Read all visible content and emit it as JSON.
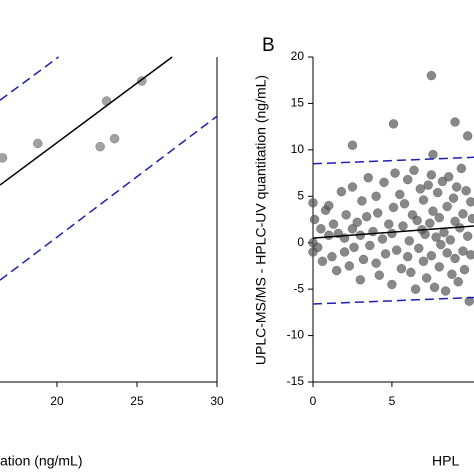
{
  "chart_data": [
    {
      "type": "scatter",
      "x_label": "ation (ng/mL)",
      "xlim": [
        16.44,
        30
      ],
      "ylim": [
        6.7,
        27
      ],
      "xticks": [
        20,
        25,
        30
      ],
      "series": [
        {
          "kind": "points",
          "color": "#7a7a7a",
          "x": [
            23.1,
            25.3,
            23.6,
            22.7,
            18.8,
            16.6
          ],
          "values": [
            24.25,
            25.5,
            21.9,
            21.4,
            21.6,
            20.7
          ]
        },
        {
          "kind": "solid",
          "color": "#000000",
          "x": [
            16.44,
            27.2
          ],
          "values": [
            19.0,
            27.0
          ]
        },
        {
          "kind": "dashed",
          "color": "#1f1fb4",
          "x": [
            16.44,
            20.1
          ],
          "values": [
            24.3,
            27.0
          ]
        },
        {
          "kind": "dashed",
          "color": "#1f1fb4",
          "x": [
            16.44,
            30
          ],
          "values": [
            13.06,
            23.3
          ]
        }
      ]
    },
    {
      "type": "scatter",
      "panel_label": "B",
      "x_label": "HPL",
      "y_label": "UPLC-MS/MS - HPLC-UV quantitation (ng/mL)",
      "xlim": [
        0,
        10.2
      ],
      "ylim": [
        -15,
        20
      ],
      "xticks": [
        0,
        5
      ],
      "yticks": [
        -15,
        -10,
        -5,
        0,
        5,
        10,
        15,
        20
      ],
      "series": [
        {
          "kind": "points",
          "color": "#555555",
          "x": [
            0,
            0,
            0,
            0.1,
            0.3,
            0.5,
            0.6,
            0.8,
            1,
            1,
            1.2,
            1.3,
            1.5,
            1.6,
            1.8,
            2,
            2,
            2.1,
            2.3,
            2.5,
            2.5,
            2.6,
            2.8,
            3,
            3,
            3.1,
            3.2,
            3.4,
            3.5,
            3.6,
            3.8,
            4,
            4,
            4.1,
            4.2,
            4.4,
            4.5,
            4.6,
            4.8,
            5,
            5,
            5.1,
            5.2,
            5.3,
            5.5,
            5.6,
            5.7,
            5.8,
            6,
            6,
            6.1,
            6.2,
            6.3,
            6.4,
            6.5,
            6.6,
            6.7,
            6.8,
            6.9,
            7,
            7,
            7.1,
            7.2,
            7.3,
            7.4,
            7.5,
            7.5,
            7.6,
            7.7,
            7.8,
            7.9,
            8,
            8,
            8.1,
            8.2,
            8.3,
            8.4,
            8.5,
            8.5,
            8.6,
            8.7,
            8.8,
            8.9,
            9,
            9,
            9.1,
            9.2,
            9.3,
            9.4,
            9.5,
            9.5,
            9.6,
            9.7,
            9.8,
            9.9,
            10,
            10,
            10.1,
            7.5,
            5.1,
            9,
            2.5,
            9.8,
            7.6
          ],
          "values": [
            0,
            4.3,
            -1,
            2.5,
            -0.5,
            1.5,
            -2,
            3.5,
            4,
            0.8,
            -1.5,
            2,
            -3,
            1,
            5.5,
            0.5,
            -1,
            3,
            -2.5,
            6,
            1.5,
            -0.5,
            2.2,
            -4,
            0.8,
            4.5,
            -1.8,
            2.8,
            7,
            -0.3,
            1.2,
            -2.2,
            5,
            3.2,
            -3.5,
            0.4,
            6.5,
            -1.2,
            2,
            1,
            -4.5,
            3.8,
            7.5,
            -0.8,
            5.2,
            -2.8,
            1.8,
            4.2,
            -1.5,
            6.8,
            0.2,
            -3.2,
            3,
            7.8,
            -5,
            2.4,
            -0.6,
            5.8,
            1.4,
            -2,
            4.6,
            0.9,
            -3.8,
            6.2,
            2.1,
            -1.4,
            7.3,
            3.4,
            -4.8,
            0.6,
            5.4,
            -2.6,
            2.7,
            -0.2,
            6.6,
            1.1,
            -5.2,
            3.9,
            -1.1,
            7.1,
            0.3,
            -3.4,
            4.8,
            2.3,
            -1.7,
            6,
            -4.2,
            1.6,
            8,
            -0.9,
            3.1,
            -2.9,
            5.6,
            0.7,
            -6.3,
            4.4,
            -1.3,
            2.6,
            18,
            12.8,
            13,
            10.5,
            11.5,
            9.5
          ]
        },
        {
          "kind": "solid",
          "color": "#000000",
          "x": [
            0,
            10.2
          ],
          "values": [
            0.5,
            1.8
          ]
        },
        {
          "kind": "dashed",
          "color": "#1f1fb4",
          "x": [
            0,
            10.2
          ],
          "values": [
            8.5,
            9.2
          ]
        },
        {
          "kind": "dashed",
          "color": "#1f1fb4",
          "x": [
            0,
            10.2
          ],
          "values": [
            -6.6,
            -5.9
          ]
        }
      ]
    }
  ]
}
